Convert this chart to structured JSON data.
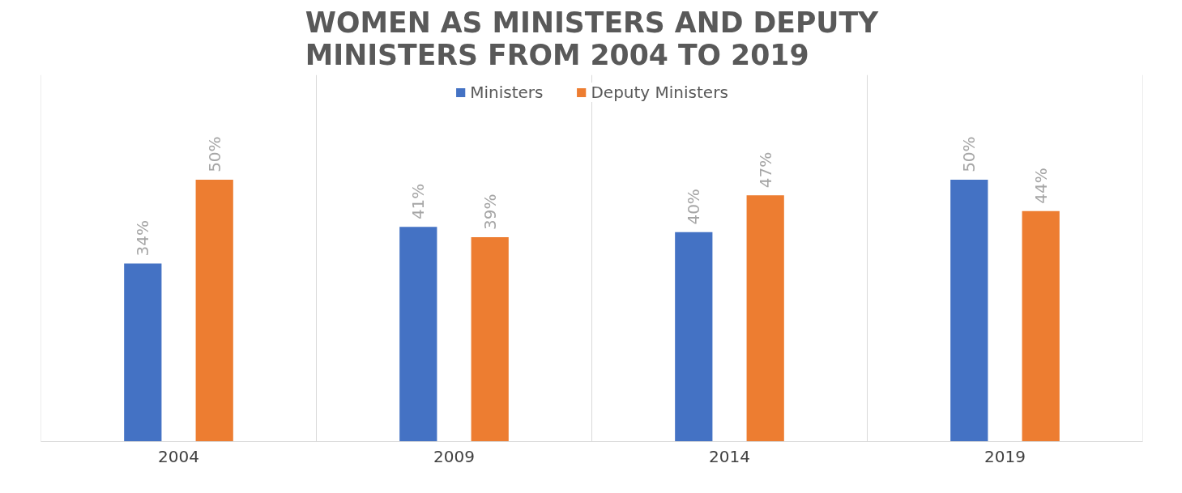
{
  "chart_data": {
    "type": "bar",
    "title": "WOMEN AS MINISTERS AND DEPUTY MINISTERS FROM 2004 TO 2019",
    "categories": [
      "2004",
      "2009",
      "2014",
      "2019"
    ],
    "series": [
      {
        "name": "Ministers",
        "color": "#4472c4",
        "values": [
          34,
          41,
          40,
          50
        ],
        "value_labels": [
          "34%",
          "41%",
          "40%",
          "50%"
        ]
      },
      {
        "name": "Deputy Ministers",
        "color": "#ed7d31",
        "values": [
          50,
          39,
          47,
          44
        ],
        "value_labels": [
          "50%",
          "39%",
          "47%",
          "44%"
        ]
      }
    ],
    "ylim": [
      0,
      70
    ],
    "tick_labels": "x",
    "grid": "x",
    "legend": "top"
  }
}
